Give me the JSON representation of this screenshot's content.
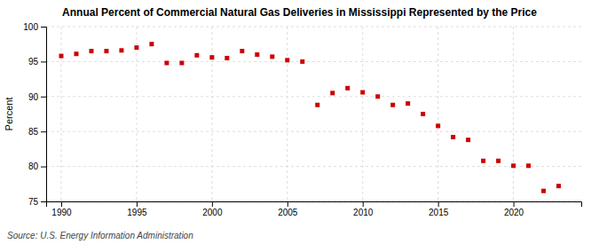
{
  "chart_data": {
    "type": "scatter",
    "title": "Annual Percent of Commercial Natural Gas Deliveries in Mississippi Represented by the Price",
    "ylabel": "Percent",
    "source": "Source: U.S. Energy Information Administration",
    "x": [
      1990,
      1991,
      1992,
      1993,
      1994,
      1995,
      1996,
      1997,
      1998,
      1999,
      2000,
      2001,
      2002,
      2003,
      2004,
      2005,
      2006,
      2007,
      2008,
      2009,
      2010,
      2011,
      2012,
      2013,
      2014,
      2015,
      2016,
      2017,
      2018,
      2019,
      2020,
      2021,
      2022,
      2023
    ],
    "values": [
      95.8,
      96.1,
      96.5,
      96.5,
      96.6,
      97.0,
      97.5,
      94.8,
      94.8,
      95.9,
      95.6,
      95.5,
      96.5,
      96.0,
      95.7,
      95.2,
      95.0,
      88.8,
      90.5,
      91.2,
      90.6,
      90.0,
      88.8,
      89.0,
      87.5,
      85.8,
      84.2,
      83.8,
      80.8,
      80.8,
      80.1,
      80.1,
      76.5,
      77.2
    ],
    "color": "#cc0000",
    "marker": "square",
    "xlim": [
      1989,
      2024.5
    ],
    "ylim": [
      75,
      100
    ],
    "xticks": [
      1990,
      1995,
      2000,
      2005,
      2010,
      2015,
      2020
    ],
    "yticks": [
      75,
      80,
      85,
      90,
      95,
      100
    ],
    "grid": true
  }
}
